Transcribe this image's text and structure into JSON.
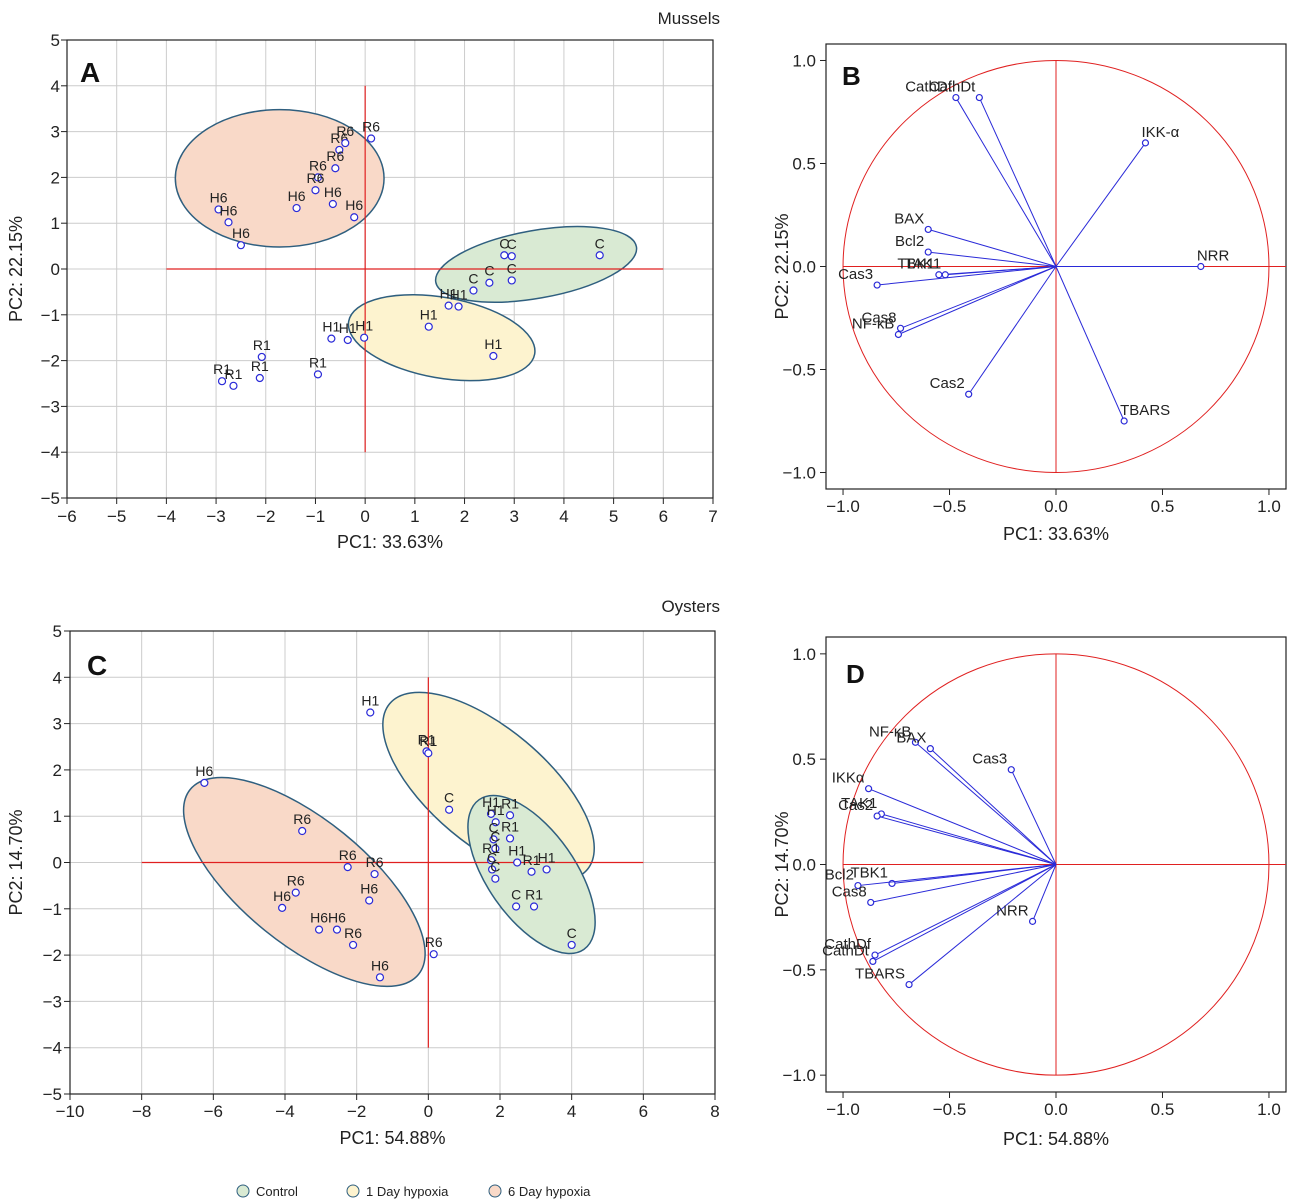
{
  "section_titles": {
    "top": "Mussels",
    "bottom": "Oysters"
  },
  "legend": {
    "control": "Control",
    "day1": "1 Day hypoxia",
    "day6": "6 Day hypoxia"
  },
  "colors": {
    "point_stroke": "#2a2ad8",
    "axis_line": "#e02020",
    "ellipse_stroke": "#2f5f7f",
    "control_fill": "#d9ead3",
    "day1_fill": "#fdf3cf",
    "day6_fill": "#f9d9c8",
    "loading_line": "#2a2ad8",
    "circle": "#e02020",
    "grid": "#cccccc"
  },
  "chart_data": [
    {
      "panel": "A",
      "type": "scatter",
      "xlabel": "PC1: 33.63%",
      "ylabel": "PC2: 22.15%",
      "xlim": [
        -6,
        7
      ],
      "ylim": [
        -5,
        5
      ],
      "xticks": [
        -6,
        -5,
        -4,
        -3,
        -2,
        -1,
        0,
        1,
        2,
        3,
        4,
        5,
        6,
        7
      ],
      "yticks": [
        -5,
        -4,
        -3,
        -2,
        -1,
        0,
        1,
        2,
        3,
        4,
        5
      ],
      "grid": true,
      "ref_lines": {
        "h": {
          "y": 0,
          "x1": -4,
          "x2": 6
        },
        "v": {
          "x": 0,
          "y1": -4,
          "y2": 4
        }
      },
      "ellipses": [
        {
          "group": "day6",
          "cx": -1.72,
          "cy": 1.98,
          "rx": 2.1,
          "ry": 1.5,
          "angle": 0
        },
        {
          "group": "control",
          "cx": 3.44,
          "cy": 0.1,
          "rx": 2.05,
          "ry": 0.74,
          "angle": 10
        },
        {
          "group": "day1",
          "cx": 1.54,
          "cy": -1.5,
          "rx": 1.9,
          "ry": 0.88,
          "angle": -10
        }
      ],
      "points": [
        {
          "x": 2.8,
          "y": 0.3,
          "label": "C"
        },
        {
          "x": 2.95,
          "y": 0.28,
          "label": "C"
        },
        {
          "x": 4.72,
          "y": 0.3,
          "label": "C"
        },
        {
          "x": 2.95,
          "y": -0.25,
          "label": "C"
        },
        {
          "x": 2.5,
          "y": -0.3,
          "label": "C"
        },
        {
          "x": 2.18,
          "y": -0.47,
          "label": "C"
        },
        {
          "x": 1.68,
          "y": -0.8,
          "label": "H1"
        },
        {
          "x": 1.88,
          "y": -0.82,
          "label": "H1"
        },
        {
          "x": 1.28,
          "y": -1.26,
          "label": "H1"
        },
        {
          "x": 2.58,
          "y": -1.9,
          "label": "H1"
        },
        {
          "x": -0.68,
          "y": -1.52,
          "label": "H1"
        },
        {
          "x": -0.35,
          "y": -1.55,
          "label": "H1"
        },
        {
          "x": -0.02,
          "y": -1.5,
          "label": "H1"
        },
        {
          "x": -0.52,
          "y": 2.6,
          "label": "R6"
        },
        {
          "x": -0.4,
          "y": 2.75,
          "label": "R6"
        },
        {
          "x": -0.6,
          "y": 2.2,
          "label": "R6"
        },
        {
          "x": -0.95,
          "y": 2.0,
          "label": "R6"
        },
        {
          "x": -1.0,
          "y": 1.72,
          "label": "R6"
        },
        {
          "x": 0.12,
          "y": 2.85,
          "label": "R6"
        },
        {
          "x": -2.95,
          "y": 1.3,
          "label": "H6"
        },
        {
          "x": -2.75,
          "y": 1.02,
          "label": "H6"
        },
        {
          "x": -2.5,
          "y": 0.52,
          "label": "H6"
        },
        {
          "x": -1.38,
          "y": 1.33,
          "label": "H6"
        },
        {
          "x": -0.65,
          "y": 1.42,
          "label": "H6"
        },
        {
          "x": -0.22,
          "y": 1.13,
          "label": "H6"
        },
        {
          "x": -2.08,
          "y": -1.92,
          "label": "R1"
        },
        {
          "x": -2.12,
          "y": -2.38,
          "label": "R1"
        },
        {
          "x": -2.88,
          "y": -2.45,
          "label": "R1"
        },
        {
          "x": -2.65,
          "y": -2.55,
          "label": "R1"
        },
        {
          "x": -0.95,
          "y": -2.3,
          "label": "R1"
        }
      ]
    },
    {
      "panel": "B",
      "type": "scatter",
      "xlabel": "PC1: 33.63%",
      "ylabel": "PC2: 22.15%",
      "xlim": [
        -1.08,
        1.08
      ],
      "ylim": [
        -1.08,
        1.08
      ],
      "xticks": [
        -1.0,
        -0.5,
        0.0,
        0.5,
        1.0
      ],
      "yticks": [
        -1.0,
        -0.5,
        0.0,
        0.5,
        1.0
      ],
      "grid": false,
      "unit_circle": true,
      "loadings": [
        {
          "name": "CathDt",
          "x": -0.36,
          "y": 0.82
        },
        {
          "name": "CathDf",
          "x": -0.47,
          "y": 0.82
        },
        {
          "name": "IKK-α",
          "x": 0.42,
          "y": 0.6
        },
        {
          "name": "BAX",
          "x": -0.6,
          "y": 0.18
        },
        {
          "name": "Bcl2",
          "x": -0.6,
          "y": 0.07
        },
        {
          "name": "TBK1",
          "x": -0.55,
          "y": -0.04
        },
        {
          "name": "TAK1",
          "x": -0.52,
          "y": -0.04
        },
        {
          "name": "Cas3",
          "x": -0.84,
          "y": -0.09
        },
        {
          "name": "Cas8",
          "x": -0.73,
          "y": -0.3
        },
        {
          "name": "NF-κB",
          "x": -0.74,
          "y": -0.33
        },
        {
          "name": "Cas2",
          "x": -0.41,
          "y": -0.62
        },
        {
          "name": "TBARS",
          "x": 0.32,
          "y": -0.75
        },
        {
          "name": "NRR",
          "x": 0.68,
          "y": 0.0
        }
      ]
    },
    {
      "panel": "C",
      "type": "scatter",
      "xlabel": "PC1: 54.88%",
      "ylabel": "PC2: 14.70%",
      "xlim": [
        -10,
        8
      ],
      "ylim": [
        -5,
        5
      ],
      "xticks": [
        -10,
        -8,
        -6,
        -4,
        -2,
        0,
        2,
        4,
        6,
        8
      ],
      "yticks": [
        -5,
        -4,
        -3,
        -2,
        -1,
        0,
        1,
        2,
        3,
        4,
        5
      ],
      "grid": true,
      "ref_lines": {
        "h": {
          "y": 0,
          "x1": -8,
          "x2": 6
        },
        "v": {
          "x": 0,
          "y1": -4,
          "y2": 4
        }
      },
      "ellipses": [
        {
          "group": "day6",
          "cx": -3.46,
          "cy": -0.42,
          "rx": 4.1,
          "ry": 1.35,
          "angle": -39
        },
        {
          "group": "day1",
          "cx": 1.68,
          "cy": 1.64,
          "rx": 3.6,
          "ry": 1.26,
          "angle": -40
        },
        {
          "group": "control",
          "cx": 2.88,
          "cy": -0.26,
          "rx": 2.55,
          "ry": 0.95,
          "angle": -55
        }
      ],
      "points": [
        {
          "x": -1.62,
          "y": 3.24,
          "label": "H1"
        },
        {
          "x": -0.05,
          "y": 2.4,
          "label": "R1"
        },
        {
          "x": 0.0,
          "y": 2.36,
          "label": "R1"
        },
        {
          "x": 0.58,
          "y": 1.14,
          "label": "C"
        },
        {
          "x": 1.75,
          "y": 1.05,
          "label": "H1"
        },
        {
          "x": 1.88,
          "y": 0.87,
          "label": "H1"
        },
        {
          "x": 2.28,
          "y": 1.02,
          "label": "R1"
        },
        {
          "x": 2.28,
          "y": 0.52,
          "label": "R1"
        },
        {
          "x": 1.82,
          "y": 0.5,
          "label": "C"
        },
        {
          "x": 1.87,
          "y": 0.3,
          "label": "C"
        },
        {
          "x": 1.75,
          "y": 0.05,
          "label": "R1"
        },
        {
          "x": 1.78,
          "y": -0.15,
          "label": "C"
        },
        {
          "x": 1.87,
          "y": -0.35,
          "label": "C"
        },
        {
          "x": 2.48,
          "y": 0.0,
          "label": "H1"
        },
        {
          "x": 2.88,
          "y": -0.2,
          "label": "R1"
        },
        {
          "x": 3.3,
          "y": -0.15,
          "label": "H1"
        },
        {
          "x": 2.45,
          "y": -0.95,
          "label": "C"
        },
        {
          "x": 2.95,
          "y": -0.95,
          "label": "R1"
        },
        {
          "x": 4.0,
          "y": -1.78,
          "label": "C"
        },
        {
          "x": -6.25,
          "y": 1.72,
          "label": "H6"
        },
        {
          "x": -3.52,
          "y": 0.68,
          "label": "R6"
        },
        {
          "x": -2.25,
          "y": -0.1,
          "label": "R6"
        },
        {
          "x": -1.5,
          "y": -0.25,
          "label": "R6"
        },
        {
          "x": -3.7,
          "y": -0.65,
          "label": "R6"
        },
        {
          "x": -4.08,
          "y": -0.98,
          "label": "H6"
        },
        {
          "x": -1.65,
          "y": -0.82,
          "label": "H6"
        },
        {
          "x": -3.05,
          "y": -1.45,
          "label": "H6"
        },
        {
          "x": -2.55,
          "y": -1.45,
          "label": "H6"
        },
        {
          "x": -2.1,
          "y": -1.78,
          "label": "R6"
        },
        {
          "x": -1.35,
          "y": -2.48,
          "label": "H6"
        },
        {
          "x": 0.15,
          "y": -1.98,
          "label": "R6"
        }
      ]
    },
    {
      "panel": "D",
      "type": "scatter",
      "xlabel": "PC1: 54.88%",
      "ylabel": "PC2: 14.70%",
      "xlim": [
        -1.08,
        1.08
      ],
      "ylim": [
        -1.08,
        1.08
      ],
      "xticks": [
        -1.0,
        -0.5,
        0.0,
        0.5,
        1.0
      ],
      "yticks": [
        -1.0,
        -0.5,
        0.0,
        0.5,
        1.0
      ],
      "grid": false,
      "unit_circle": true,
      "loadings": [
        {
          "name": "NF-κB",
          "x": -0.66,
          "y": 0.58
        },
        {
          "name": "BAX",
          "x": -0.59,
          "y": 0.55
        },
        {
          "name": "Cas3",
          "x": -0.21,
          "y": 0.45
        },
        {
          "name": "IKKα",
          "x": -0.88,
          "y": 0.36
        },
        {
          "name": "TAK1",
          "x": -0.82,
          "y": 0.24
        },
        {
          "name": "Cas2",
          "x": -0.84,
          "y": 0.23
        },
        {
          "name": "TBK1",
          "x": -0.77,
          "y": -0.09
        },
        {
          "name": "Bcl2",
          "x": -0.93,
          "y": -0.1
        },
        {
          "name": "Cas8",
          "x": -0.87,
          "y": -0.18
        },
        {
          "name": "CathDf",
          "x": -0.85,
          "y": -0.43
        },
        {
          "name": "CathDt",
          "x": -0.86,
          "y": -0.46
        },
        {
          "name": "TBARS",
          "x": -0.69,
          "y": -0.57
        },
        {
          "name": "NRR",
          "x": -0.11,
          "y": -0.27
        }
      ]
    }
  ]
}
